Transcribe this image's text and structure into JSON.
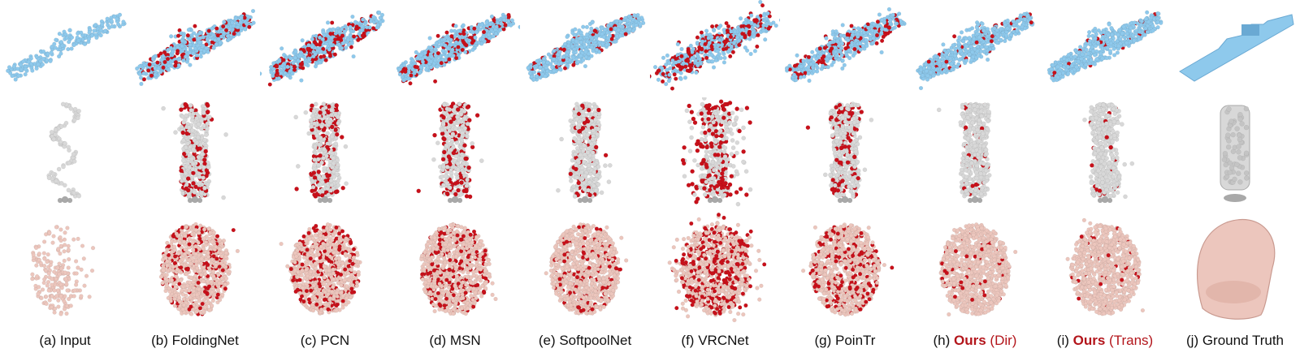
{
  "figure": {
    "rows": [
      {
        "name": "ship",
        "color": "#8ec9ec",
        "shade": "#6aa9d3"
      },
      {
        "name": "vase",
        "color": "#d8d8d8",
        "shade": "#a9a9a9"
      },
      {
        "name": "chair",
        "color": "#ecc6bd",
        "shade": "#c99a90"
      }
    ],
    "error_color": "#c8101a",
    "columns": [
      {
        "key": "input",
        "prefix": "(a) ",
        "name": "Input",
        "suffix": ""
      },
      {
        "key": "foldingnet",
        "prefix": "(b) ",
        "name": "FoldingNet",
        "suffix": ""
      },
      {
        "key": "pcn",
        "prefix": "(c) ",
        "name": "PCN",
        "suffix": ""
      },
      {
        "key": "msn",
        "prefix": "(d) ",
        "name": "MSN",
        "suffix": ""
      },
      {
        "key": "softpoolnet",
        "prefix": "(e) ",
        "name": "SoftpoolNet",
        "suffix": ""
      },
      {
        "key": "vrcnet",
        "prefix": "(f) ",
        "name": "VRCNet",
        "suffix": ""
      },
      {
        "key": "pointr",
        "prefix": "(g) ",
        "name": "PoinTr",
        "suffix": ""
      },
      {
        "key": "ours_dir",
        "prefix": "(h) ",
        "name": "Ours",
        "suffix": " (Dir)"
      },
      {
        "key": "ours_trans",
        "prefix": "(i) ",
        "name": "Ours",
        "suffix": " (Trans)"
      },
      {
        "key": "gt",
        "prefix": "(j) ",
        "name": "Ground Truth",
        "suffix": ""
      }
    ]
  }
}
